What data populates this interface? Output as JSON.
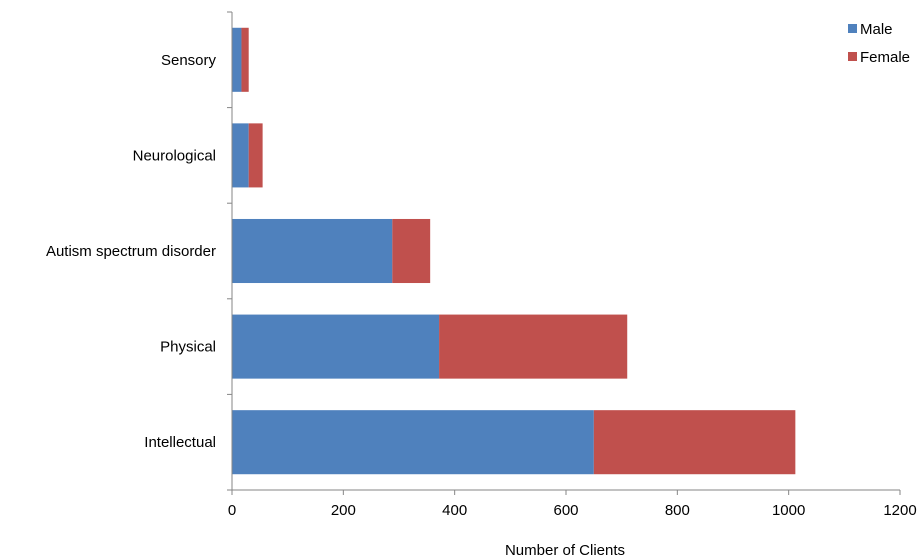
{
  "chart_data": {
    "type": "bar",
    "orientation": "horizontal",
    "stacked": true,
    "categories": [
      "Sensory",
      "Neurological",
      "Autism spectrum disorder",
      "Physical",
      "Intellectual"
    ],
    "series": [
      {
        "name": "Male",
        "color": "#4F81BD",
        "values": [
          17,
          30,
          288,
          372,
          650
        ]
      },
      {
        "name": "Female",
        "color": "#C0504D",
        "values": [
          13,
          25,
          68,
          338,
          362
        ]
      }
    ],
    "xlabel": "Number of Clients",
    "ylabel": "",
    "xlim": [
      0,
      1200
    ],
    "xticks": [
      0,
      200,
      400,
      600,
      800,
      1000,
      1200
    ],
    "grid": false,
    "legend_position": "top-right"
  }
}
